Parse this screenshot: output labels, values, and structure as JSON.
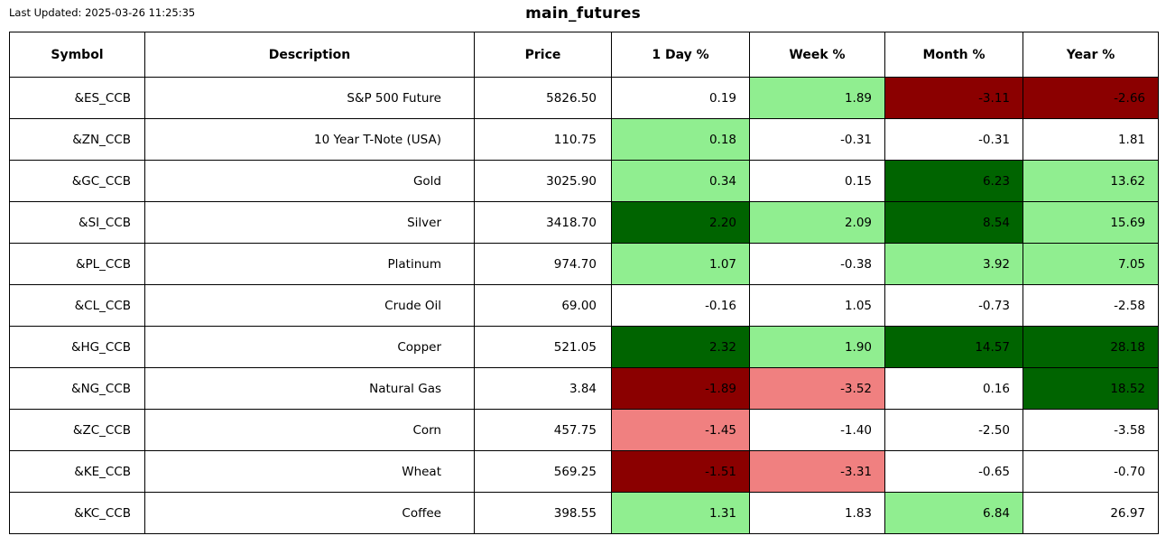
{
  "header": {
    "last_updated": "Last Updated: 2025-03-26 11:25:35",
    "title": "main_futures"
  },
  "chart_data": {
    "type": "table",
    "title": "main_futures",
    "columns": [
      "Symbol",
      "Description",
      "Price",
      "1 Day %",
      "Week %",
      "Month %",
      "Year %"
    ],
    "rows": [
      {
        "symbol": "&ES_CCB",
        "description": "S&P 500 Future",
        "price": "5826.50",
        "percents": [
          {
            "value": "0.19",
            "bg": "white"
          },
          {
            "value": "1.89",
            "bg": "lightgreen"
          },
          {
            "value": "-3.11",
            "bg": "darkred"
          },
          {
            "value": "-2.66",
            "bg": "darkred"
          }
        ]
      },
      {
        "symbol": "&ZN_CCB",
        "description": "10 Year T-Note (USA)",
        "price": "110.75",
        "percents": [
          {
            "value": "0.18",
            "bg": "lightgreen"
          },
          {
            "value": "-0.31",
            "bg": "white"
          },
          {
            "value": "-0.31",
            "bg": "white"
          },
          {
            "value": "1.81",
            "bg": "white"
          }
        ]
      },
      {
        "symbol": "&GC_CCB",
        "description": "Gold",
        "price": "3025.90",
        "percents": [
          {
            "value": "0.34",
            "bg": "lightgreen"
          },
          {
            "value": "0.15",
            "bg": "white"
          },
          {
            "value": "6.23",
            "bg": "darkgreen"
          },
          {
            "value": "13.62",
            "bg": "lightgreen"
          }
        ]
      },
      {
        "symbol": "&SI_CCB",
        "description": "Silver",
        "price": "3418.70",
        "percents": [
          {
            "value": "2.20",
            "bg": "darkgreen"
          },
          {
            "value": "2.09",
            "bg": "lightgreen"
          },
          {
            "value": "8.54",
            "bg": "darkgreen"
          },
          {
            "value": "15.69",
            "bg": "lightgreen"
          }
        ]
      },
      {
        "symbol": "&PL_CCB",
        "description": "Platinum",
        "price": "974.70",
        "percents": [
          {
            "value": "1.07",
            "bg": "lightgreen"
          },
          {
            "value": "-0.38",
            "bg": "white"
          },
          {
            "value": "3.92",
            "bg": "lightgreen"
          },
          {
            "value": "7.05",
            "bg": "lightgreen"
          }
        ]
      },
      {
        "symbol": "&CL_CCB",
        "description": "Crude Oil",
        "price": "69.00",
        "percents": [
          {
            "value": "-0.16",
            "bg": "white"
          },
          {
            "value": "1.05",
            "bg": "white"
          },
          {
            "value": "-0.73",
            "bg": "white"
          },
          {
            "value": "-2.58",
            "bg": "white"
          }
        ]
      },
      {
        "symbol": "&HG_CCB",
        "description": "Copper",
        "price": "521.05",
        "percents": [
          {
            "value": "2.32",
            "bg": "darkgreen"
          },
          {
            "value": "1.90",
            "bg": "lightgreen"
          },
          {
            "value": "14.57",
            "bg": "darkgreen"
          },
          {
            "value": "28.18",
            "bg": "darkgreen"
          }
        ]
      },
      {
        "symbol": "&NG_CCB",
        "description": "Natural Gas",
        "price": "3.84",
        "percents": [
          {
            "value": "-1.89",
            "bg": "darkred"
          },
          {
            "value": "-3.52",
            "bg": "lightcoral"
          },
          {
            "value": "0.16",
            "bg": "white"
          },
          {
            "value": "18.52",
            "bg": "darkgreen"
          }
        ]
      },
      {
        "symbol": "&ZC_CCB",
        "description": "Corn",
        "price": "457.75",
        "percents": [
          {
            "value": "-1.45",
            "bg": "lightcoral"
          },
          {
            "value": "-1.40",
            "bg": "white"
          },
          {
            "value": "-2.50",
            "bg": "white"
          },
          {
            "value": "-3.58",
            "bg": "white"
          }
        ]
      },
      {
        "symbol": "&KE_CCB",
        "description": "Wheat",
        "price": "569.25",
        "percents": [
          {
            "value": "-1.51",
            "bg": "darkred"
          },
          {
            "value": "-3.31",
            "bg": "lightcoral"
          },
          {
            "value": "-0.65",
            "bg": "white"
          },
          {
            "value": "-0.70",
            "bg": "white"
          }
        ]
      },
      {
        "symbol": "&KC_CCB",
        "description": "Coffee",
        "price": "398.55",
        "percents": [
          {
            "value": "1.31",
            "bg": "lightgreen"
          },
          {
            "value": "1.83",
            "bg": "white"
          },
          {
            "value": "6.84",
            "bg": "lightgreen"
          },
          {
            "value": "26.97",
            "bg": "white"
          }
        ]
      }
    ],
    "color_legend": {
      "white": "#ffffff",
      "lightgreen": "#90ee90",
      "darkgreen": "#006400",
      "darkred": "#8b0000",
      "lightcoral": "#f08080"
    },
    "text_color": "#000000",
    "border_color": "#000000"
  }
}
